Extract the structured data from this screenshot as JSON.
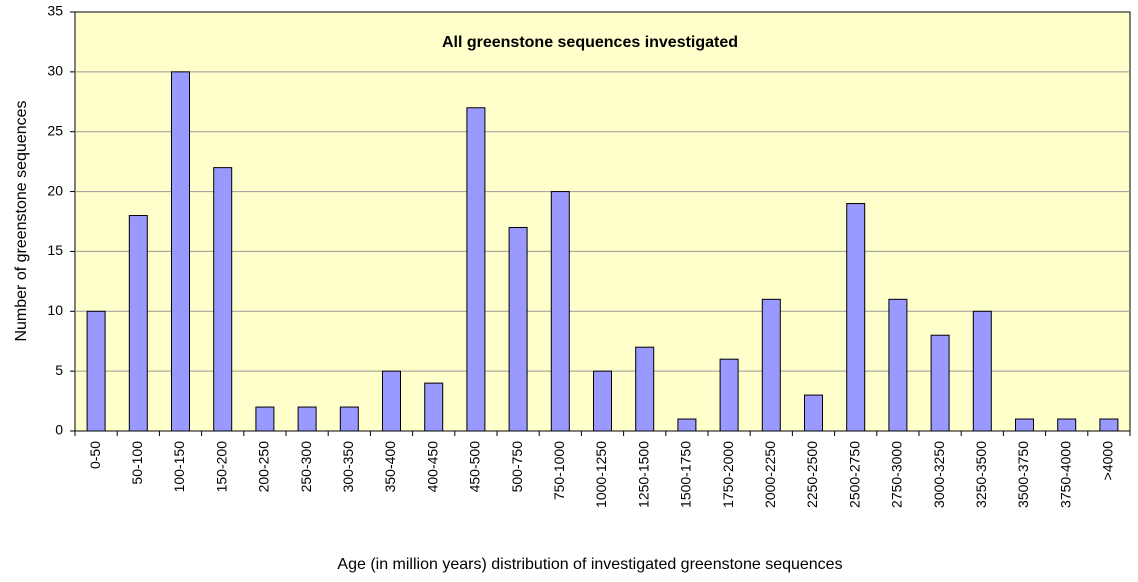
{
  "chart_data": {
    "type": "bar",
    "title": "All greenstone sequences investigated",
    "x_label": "Age (in million years) distribution of investigated greenstone sequences",
    "y_label": "Number of greenstone sequences",
    "categories": [
      "0-50",
      "50-100",
      "100-150",
      "150-200",
      "200-250",
      "250-300",
      "300-350",
      "350-400",
      "400-450",
      "450-500",
      "500-750",
      "750-1000",
      "1000-1250",
      "1250-1500",
      "1500-1750",
      "1750-2000",
      "2000-2250",
      "2250-2500",
      "2500-2750",
      "2750-3000",
      "3000-3250",
      "3250-3500",
      "3500-3750",
      "3750-4000",
      ">4000"
    ],
    "values": [
      10,
      18,
      30,
      22,
      2,
      2,
      2,
      5,
      4,
      27,
      17,
      20,
      5,
      7,
      1,
      6,
      11,
      3,
      19,
      11,
      8,
      10,
      1,
      1,
      1
    ],
    "color": "#9999ff",
    "ylim": [
      0,
      35
    ],
    "yticks": [
      0,
      5,
      10,
      15,
      20,
      25,
      30,
      35
    ],
    "grid": true
  }
}
